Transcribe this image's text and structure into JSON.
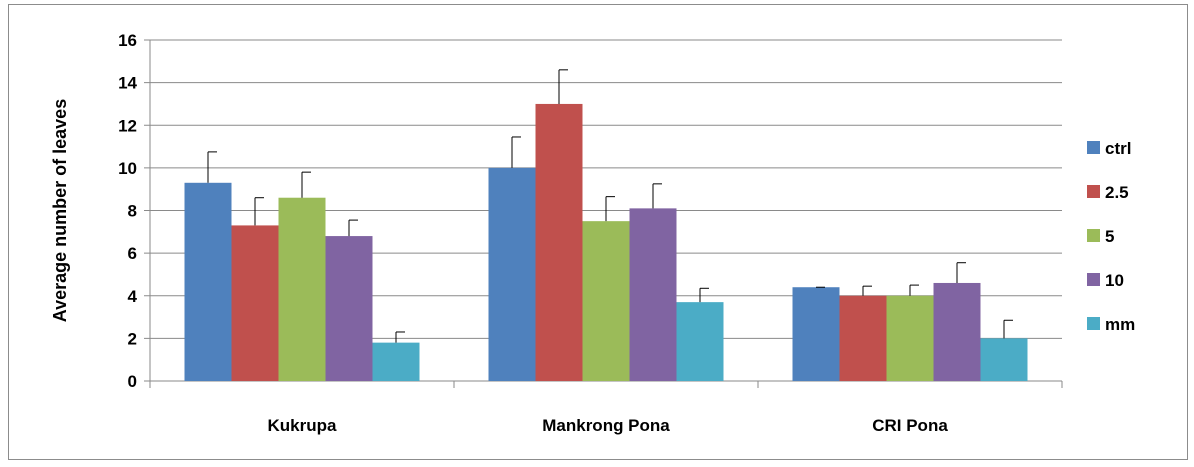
{
  "chart_data": {
    "type": "bar",
    "title": "",
    "xlabel": "",
    "ylabel": "Average number of leaves",
    "ylim": [
      0,
      16
    ],
    "yticks": [
      0,
      2,
      4,
      6,
      8,
      10,
      12,
      14,
      16
    ],
    "grid": true,
    "legend_position": "right",
    "categories": [
      "Kukrupa",
      "Mankrong Pona",
      "CRI Pona"
    ],
    "series": [
      {
        "name": "ctrl",
        "color": "#4F81BD",
        "values": [
          9.3,
          10.0,
          4.4
        ],
        "errors": [
          1.45,
          1.45,
          0.0
        ]
      },
      {
        "name": "2.5",
        "color": "#C0504D",
        "values": [
          7.3,
          13.0,
          4.0
        ],
        "errors": [
          1.3,
          1.6,
          0.45
        ]
      },
      {
        "name": "5",
        "color": "#9BBB59",
        "values": [
          8.6,
          7.5,
          4.0
        ],
        "errors": [
          1.2,
          1.15,
          0.5
        ]
      },
      {
        "name": "10",
        "color": "#8064A2",
        "values": [
          6.8,
          8.1,
          4.6
        ],
        "errors": [
          0.75,
          1.15,
          0.95
        ]
      },
      {
        "name": "mm",
        "color": "#4BACC6",
        "values": [
          1.8,
          3.7,
          2.0
        ],
        "errors": [
          0.5,
          0.65,
          0.85
        ]
      }
    ]
  }
}
